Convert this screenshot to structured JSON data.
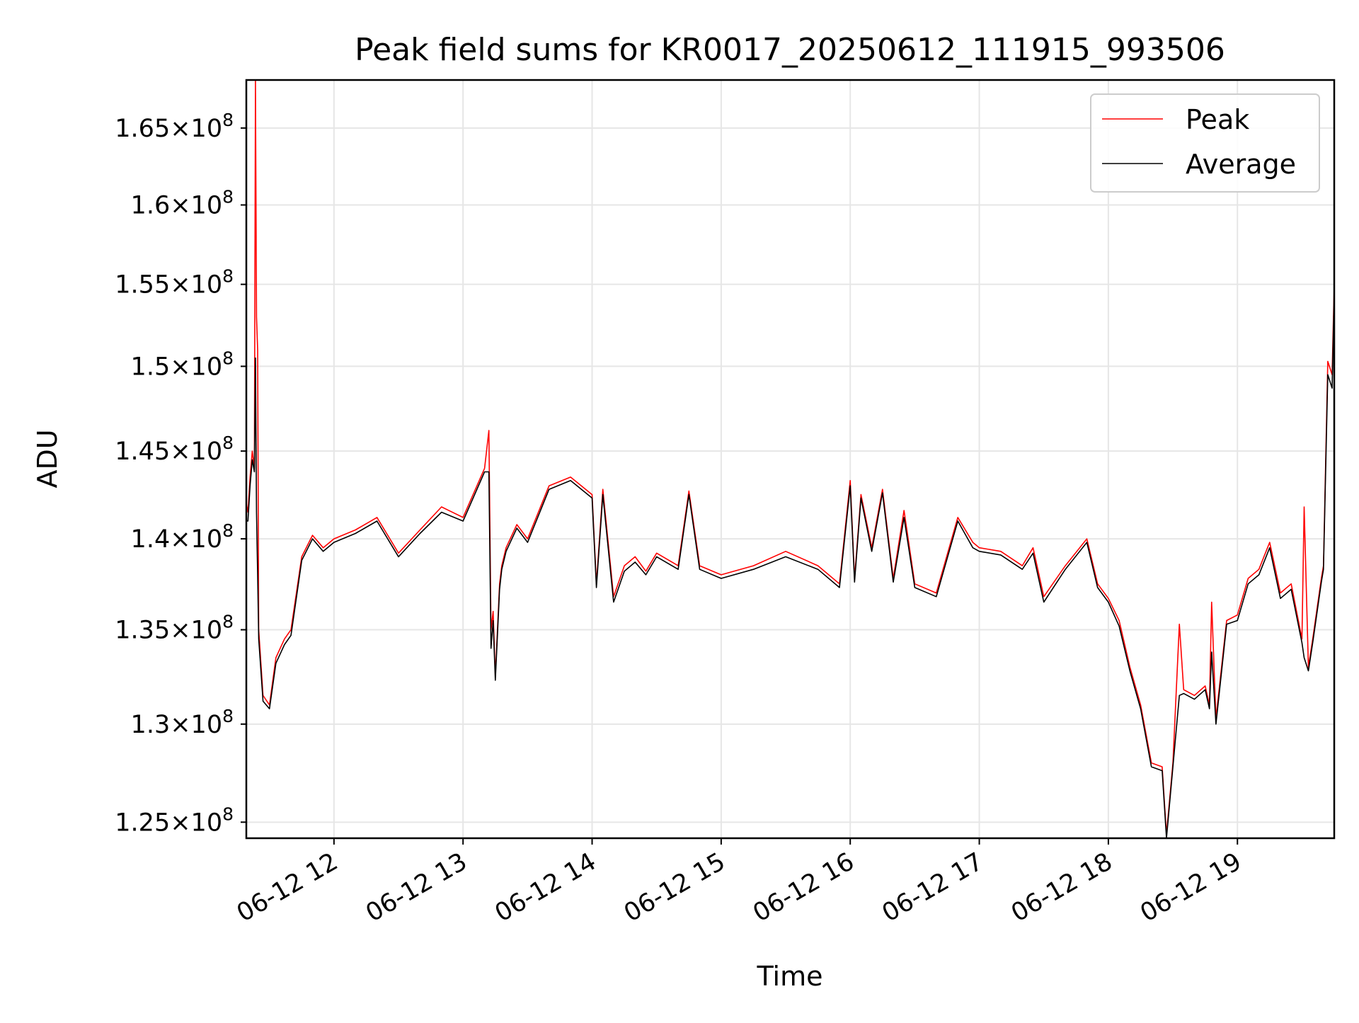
{
  "chart_data": {
    "type": "line",
    "title": "Peak field sums for KR0017_20250612_111915_993506",
    "xlabel": "Time",
    "ylabel": "ADU",
    "x_scale": "time",
    "y_scale": "log",
    "xlim": [
      "2025-06-12T11:19:15",
      "2025-06-12T19:45:00"
    ],
    "ylim": [
      124200000,
      168200000
    ],
    "grid": true,
    "legend": {
      "position": "top-right",
      "entries": [
        "Peak",
        "Average"
      ]
    },
    "x_ticks": [
      {
        "value": "2025-06-12T12:00",
        "label": "06-12 12"
      },
      {
        "value": "2025-06-12T13:00",
        "label": "06-12 13"
      },
      {
        "value": "2025-06-12T14:00",
        "label": "06-12 14"
      },
      {
        "value": "2025-06-12T15:00",
        "label": "06-12 15"
      },
      {
        "value": "2025-06-12T16:00",
        "label": "06-12 16"
      },
      {
        "value": "2025-06-12T17:00",
        "label": "06-12 17"
      },
      {
        "value": "2025-06-12T18:00",
        "label": "06-12 18"
      },
      {
        "value": "2025-06-12T19:00",
        "label": "06-12 19"
      }
    ],
    "y_ticks": [
      {
        "value": 125000000,
        "mantissa": "1.25",
        "base": "10",
        "exp": "8"
      },
      {
        "value": 130000000,
        "mantissa": "1.3",
        "base": "10",
        "exp": "8"
      },
      {
        "value": 135000000,
        "mantissa": "1.35",
        "base": "10",
        "exp": "8"
      },
      {
        "value": 140000000,
        "mantissa": "1.4",
        "base": "10",
        "exp": "8"
      },
      {
        "value": 145000000,
        "mantissa": "1.45",
        "base": "10",
        "exp": "8"
      },
      {
        "value": 150000000,
        "mantissa": "1.5",
        "base": "10",
        "exp": "8"
      },
      {
        "value": 155000000,
        "mantissa": "1.55",
        "base": "10",
        "exp": "8"
      },
      {
        "value": 160000000,
        "mantissa": "1.6",
        "base": "10",
        "exp": "8"
      },
      {
        "value": 165000000,
        "mantissa": "1.65",
        "base": "10",
        "exp": "8"
      }
    ],
    "series": [
      {
        "name": "Peak",
        "color": "#ff0000",
        "x": [
          "2025-06-12T11:19:15",
          "2025-06-12T11:20",
          "2025-06-12T11:21",
          "2025-06-12T11:22",
          "2025-06-12T11:23",
          "2025-06-12T11:23:30",
          "2025-06-12T11:24",
          "2025-06-12T11:24:30",
          "2025-06-12T11:25",
          "2025-06-12T11:27",
          "2025-06-12T11:30",
          "2025-06-12T11:33",
          "2025-06-12T11:37",
          "2025-06-12T11:40",
          "2025-06-12T11:45",
          "2025-06-12T11:50",
          "2025-06-12T11:55",
          "2025-06-12T12:00",
          "2025-06-12T12:10",
          "2025-06-12T12:20",
          "2025-06-12T12:30",
          "2025-06-12T12:40",
          "2025-06-12T12:50",
          "2025-06-12T13:00",
          "2025-06-12T13:10",
          "2025-06-12T13:12",
          "2025-06-12T13:13",
          "2025-06-12T13:14",
          "2025-06-12T13:15",
          "2025-06-12T13:17",
          "2025-06-12T13:18",
          "2025-06-12T13:20",
          "2025-06-12T13:25",
          "2025-06-12T13:30",
          "2025-06-12T13:40",
          "2025-06-12T13:50",
          "2025-06-12T14:00",
          "2025-06-12T14:02",
          "2025-06-12T14:05",
          "2025-06-12T14:10",
          "2025-06-12T14:15",
          "2025-06-12T14:20",
          "2025-06-12T14:25",
          "2025-06-12T14:30",
          "2025-06-12T14:40",
          "2025-06-12T14:45",
          "2025-06-12T14:50",
          "2025-06-12T15:00",
          "2025-06-12T15:15",
          "2025-06-12T15:30",
          "2025-06-12T15:45",
          "2025-06-12T15:55",
          "2025-06-12T16:00",
          "2025-06-12T16:02",
          "2025-06-12T16:05",
          "2025-06-12T16:10",
          "2025-06-12T16:15",
          "2025-06-12T16:20",
          "2025-06-12T16:25",
          "2025-06-12T16:30",
          "2025-06-12T16:40",
          "2025-06-12T16:50",
          "2025-06-12T16:57",
          "2025-06-12T17:00",
          "2025-06-12T17:10",
          "2025-06-12T17:20",
          "2025-06-12T17:25",
          "2025-06-12T17:30",
          "2025-06-12T17:40",
          "2025-06-12T17:50",
          "2025-06-12T17:55",
          "2025-06-12T18:00",
          "2025-06-12T18:05",
          "2025-06-12T18:10",
          "2025-06-12T18:15",
          "2025-06-12T18:20",
          "2025-06-12T18:25",
          "2025-06-12T18:27",
          "2025-06-12T18:30",
          "2025-06-12T18:33",
          "2025-06-12T18:35",
          "2025-06-12T18:40",
          "2025-06-12T18:45",
          "2025-06-12T18:47",
          "2025-06-12T18:48",
          "2025-06-12T18:50",
          "2025-06-12T18:55",
          "2025-06-12T19:00",
          "2025-06-12T19:05",
          "2025-06-12T19:10",
          "2025-06-12T19:15",
          "2025-06-12T19:20",
          "2025-06-12T19:25",
          "2025-06-12T19:30",
          "2025-06-12T19:31",
          "2025-06-12T19:33",
          "2025-06-12T19:35",
          "2025-06-12T19:39",
          "2025-06-12T19:40",
          "2025-06-12T19:42",
          "2025-06-12T19:44",
          "2025-06-12T19:45"
        ],
        "y": [
          142000000,
          141500000,
          143500000,
          145000000,
          144000000,
          168200000,
          153000000,
          151000000,
          135000000,
          131500000,
          131000000,
          133500000,
          134500000,
          135000000,
          139000000,
          140200000,
          139500000,
          140000000,
          140500000,
          141200000,
          139200000,
          140500000,
          141800000,
          141200000,
          144000000,
          146200000,
          135000000,
          136000000,
          132500000,
          137500000,
          138500000,
          139500000,
          140800000,
          140000000,
          143000000,
          143500000,
          142500000,
          137500000,
          142800000,
          136800000,
          138500000,
          139000000,
          138200000,
          139200000,
          138500000,
          142700000,
          138500000,
          138000000,
          138500000,
          139300000,
          138500000,
          137500000,
          143300000,
          137800000,
          142500000,
          139500000,
          142800000,
          137800000,
          141600000,
          137500000,
          137000000,
          141200000,
          139800000,
          139500000,
          139300000,
          138500000,
          139500000,
          136800000,
          138500000,
          140000000,
          137500000,
          136700000,
          135500000,
          133000000,
          131000000,
          128000000,
          127800000,
          124400000,
          128000000,
          135300000,
          131800000,
          131500000,
          132000000,
          131000000,
          136500000,
          130300000,
          135500000,
          135800000,
          137800000,
          138300000,
          139800000,
          137000000,
          137500000,
          134500000,
          141800000,
          133000000,
          134500000,
          137800000,
          138500000,
          150300000,
          149500000,
          155000000
        ]
      },
      {
        "name": "Average",
        "color": "#000000",
        "x": [
          "2025-06-12T11:19:15",
          "2025-06-12T11:20",
          "2025-06-12T11:21",
          "2025-06-12T11:22",
          "2025-06-12T11:23",
          "2025-06-12T11:23:30",
          "2025-06-12T11:24",
          "2025-06-12T11:24:30",
          "2025-06-12T11:25",
          "2025-06-12T11:27",
          "2025-06-12T11:30",
          "2025-06-12T11:33",
          "2025-06-12T11:37",
          "2025-06-12T11:40",
          "2025-06-12T11:45",
          "2025-06-12T11:50",
          "2025-06-12T11:55",
          "2025-06-12T12:00",
          "2025-06-12T12:10",
          "2025-06-12T12:20",
          "2025-06-12T12:30",
          "2025-06-12T12:40",
          "2025-06-12T12:50",
          "2025-06-12T13:00",
          "2025-06-12T13:10",
          "2025-06-12T13:12",
          "2025-06-12T13:13",
          "2025-06-12T13:14",
          "2025-06-12T13:15",
          "2025-06-12T13:17",
          "2025-06-12T13:18",
          "2025-06-12T13:20",
          "2025-06-12T13:25",
          "2025-06-12T13:30",
          "2025-06-12T13:40",
          "2025-06-12T13:50",
          "2025-06-12T14:00",
          "2025-06-12T14:02",
          "2025-06-12T14:05",
          "2025-06-12T14:10",
          "2025-06-12T14:15",
          "2025-06-12T14:20",
          "2025-06-12T14:25",
          "2025-06-12T14:30",
          "2025-06-12T14:40",
          "2025-06-12T14:45",
          "2025-06-12T14:50",
          "2025-06-12T15:00",
          "2025-06-12T15:15",
          "2025-06-12T15:30",
          "2025-06-12T15:45",
          "2025-06-12T15:55",
          "2025-06-12T16:00",
          "2025-06-12T16:02",
          "2025-06-12T16:05",
          "2025-06-12T16:10",
          "2025-06-12T16:15",
          "2025-06-12T16:20",
          "2025-06-12T16:25",
          "2025-06-12T16:30",
          "2025-06-12T16:40",
          "2025-06-12T16:50",
          "2025-06-12T16:57",
          "2025-06-12T17:00",
          "2025-06-12T17:10",
          "2025-06-12T17:20",
          "2025-06-12T17:25",
          "2025-06-12T17:30",
          "2025-06-12T17:40",
          "2025-06-12T17:50",
          "2025-06-12T17:55",
          "2025-06-12T18:00",
          "2025-06-12T18:05",
          "2025-06-12T18:10",
          "2025-06-12T18:15",
          "2025-06-12T18:20",
          "2025-06-12T18:25",
          "2025-06-12T18:27",
          "2025-06-12T18:30",
          "2025-06-12T18:33",
          "2025-06-12T18:35",
          "2025-06-12T18:40",
          "2025-06-12T18:45",
          "2025-06-12T18:47",
          "2025-06-12T18:48",
          "2025-06-12T18:50",
          "2025-06-12T18:55",
          "2025-06-12T19:00",
          "2025-06-12T19:05",
          "2025-06-12T19:10",
          "2025-06-12T19:15",
          "2025-06-12T19:20",
          "2025-06-12T19:25",
          "2025-06-12T19:30",
          "2025-06-12T19:31",
          "2025-06-12T19:33",
          "2025-06-12T19:35",
          "2025-06-12T19:39",
          "2025-06-12T19:40",
          "2025-06-12T19:42",
          "2025-06-12T19:44",
          "2025-06-12T19:45"
        ],
        "y": [
          141000000,
          141000000,
          143000000,
          144500000,
          143800000,
          150500000,
          141500000,
          138000000,
          134500000,
          131200000,
          130800000,
          133200000,
          134200000,
          134700000,
          138800000,
          140000000,
          139300000,
          139800000,
          140300000,
          141000000,
          139000000,
          140300000,
          141500000,
          141000000,
          143800000,
          143800000,
          134000000,
          135500000,
          132300000,
          137200000,
          138300000,
          139300000,
          140600000,
          139800000,
          142800000,
          143300000,
          142300000,
          137300000,
          142500000,
          136500000,
          138200000,
          138700000,
          138000000,
          139000000,
          138300000,
          142500000,
          138300000,
          137800000,
          138300000,
          139000000,
          138300000,
          137300000,
          143000000,
          137600000,
          142300000,
          139300000,
          142600000,
          137600000,
          141200000,
          137300000,
          136800000,
          141000000,
          139500000,
          139300000,
          139100000,
          138300000,
          139200000,
          136500000,
          138300000,
          139800000,
          137300000,
          136500000,
          135200000,
          132800000,
          130800000,
          127800000,
          127600000,
          124200000,
          127800000,
          131500000,
          131600000,
          131300000,
          131800000,
          130800000,
          133800000,
          130000000,
          135300000,
          135500000,
          137500000,
          138000000,
          139500000,
          136700000,
          137200000,
          134300000,
          133500000,
          132800000,
          134300000,
          137600000,
          138300000,
          149500000,
          148700000,
          154500000
        ]
      }
    ]
  }
}
